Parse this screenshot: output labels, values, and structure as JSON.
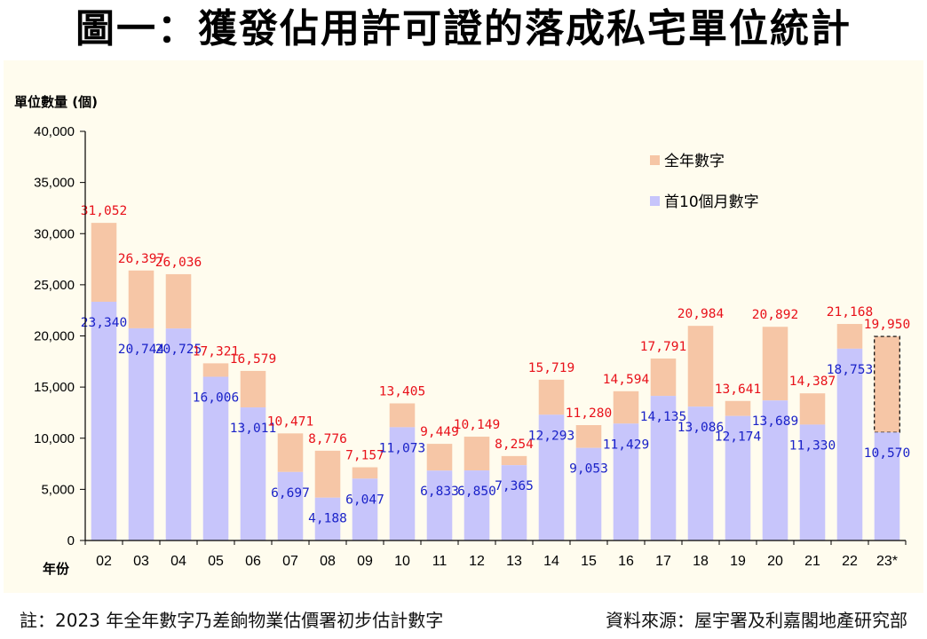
{
  "title": "圖一：獲發佔用許可證的落成私宅單位統計",
  "footer": {
    "note": "註：2023 年全年數字乃差餉物業估價署初步估計數字",
    "source": "資料來源：屋宇署及利嘉閣地產研究部"
  },
  "colors": {
    "full_year": "#f6c6a6",
    "first_10_months": "#c7c5fb",
    "total_label": "#e8111a",
    "partial_label": "#1a22c8",
    "panel_bg": "#fffcee"
  },
  "chart_data": {
    "type": "bar",
    "ylabel": "單位數量 (個)",
    "xlabel": "年份",
    "ylim": [
      0,
      40000
    ],
    "yticks": [
      0,
      5000,
      10000,
      15000,
      20000,
      25000,
      30000,
      35000,
      40000
    ],
    "ytick_labels": [
      "0",
      "5,000",
      "10,000",
      "15,000",
      "20,000",
      "25,000",
      "30,000",
      "35,000",
      "40,000"
    ],
    "legend_position": "top-right",
    "categories": [
      "02",
      "03",
      "04",
      "05",
      "06",
      "07",
      "08",
      "09",
      "10",
      "11",
      "12",
      "13",
      "14",
      "15",
      "16",
      "17",
      "18",
      "19",
      "20",
      "21",
      "22",
      "23*"
    ],
    "series": [
      {
        "name": "全年數字",
        "values": [
          31052,
          26397,
          26036,
          17321,
          16579,
          10471,
          8776,
          7157,
          13405,
          9449,
          10149,
          8254,
          15719,
          11280,
          14594,
          17791,
          20984,
          13641,
          20892,
          14387,
          21168,
          19950
        ],
        "labels": [
          "31,052",
          "26,397",
          "26,036",
          "17,321",
          "16,579",
          "10,471",
          "8,776",
          "7,157",
          "13,405",
          "9,449",
          "10,149",
          "8,254",
          "15,719",
          "11,280",
          "14,594",
          "17,791",
          "20,984",
          "13,641",
          "20,892",
          "14,387",
          "21,168",
          "19,950"
        ]
      },
      {
        "name": "首10個月數字",
        "values": [
          23340,
          20744,
          20725,
          16006,
          13011,
          6697,
          4188,
          6047,
          11073,
          6833,
          6850,
          7365,
          12293,
          9053,
          11429,
          14135,
          13086,
          12174,
          13689,
          11330,
          18753,
          10570
        ],
        "labels": [
          "23,340",
          "20,744",
          "20,725",
          "16,006",
          "13,011",
          "6,697",
          "4,188",
          "6,047",
          "11,073",
          "6,833",
          "6,850",
          "7,365",
          "12,293",
          "9,053",
          "11,429",
          "14,135",
          "13,086",
          "12,174",
          "13,689",
          "11,330",
          "18,753",
          "10,570"
        ]
      }
    ],
    "estimated_category": "23*"
  }
}
